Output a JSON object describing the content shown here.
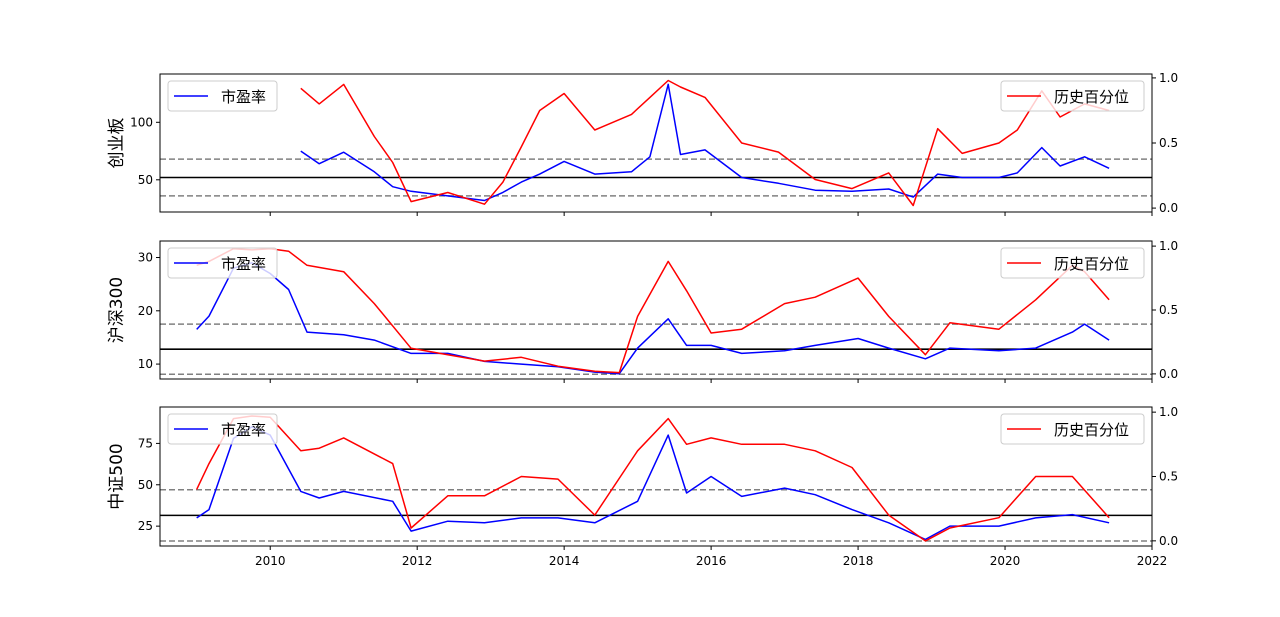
{
  "chart_data": [
    {
      "type": "line",
      "ylabel": "创业板",
      "left_ylim": [
        22,
        142
      ],
      "left_yticks": [
        50,
        100
      ],
      "right_ylim": [
        -0.03,
        1.03
      ],
      "right_yticks": [
        0.0,
        0.5,
        1.0
      ],
      "hlines": [
        {
          "y": 52,
          "style": "solid",
          "color": "#000000"
        },
        {
          "y": 68,
          "style": "dashed",
          "color": "#808080"
        },
        {
          "y": 36,
          "style": "dashed",
          "color": "#808080"
        }
      ],
      "legend_left": "top-left",
      "legend_right": "top-right",
      "series": [
        {
          "name": "市盈率",
          "axis": "left",
          "color": "#0000ff",
          "x": [
            "2010-06",
            "2010-09",
            "2011-01",
            "2011-06",
            "2011-09",
            "2011-12",
            "2012-06",
            "2012-12",
            "2013-03",
            "2013-06",
            "2013-09",
            "2014-01",
            "2014-06",
            "2014-12",
            "2015-03",
            "2015-06",
            "2015-08",
            "2015-12",
            "2016-06",
            "2016-12",
            "2017-06",
            "2017-12",
            "2018-06",
            "2018-10",
            "2019-02",
            "2019-06",
            "2019-12",
            "2020-03",
            "2020-07",
            "2020-10",
            "2021-02",
            "2021-06"
          ],
          "values": [
            75,
            64,
            74,
            57,
            44,
            40,
            36,
            32,
            39,
            48,
            55,
            66,
            55,
            57,
            70,
            133,
            72,
            76,
            52,
            47,
            41,
            40,
            42,
            35,
            55,
            52,
            52,
            56,
            78,
            62,
            70,
            60
          ]
        },
        {
          "name": "历史百分位",
          "axis": "right",
          "color": "#ff0000",
          "x": [
            "2010-06",
            "2010-09",
            "2011-01",
            "2011-06",
            "2011-09",
            "2011-12",
            "2012-06",
            "2012-12",
            "2013-03",
            "2013-06",
            "2013-09",
            "2014-01",
            "2014-06",
            "2014-12",
            "2015-03",
            "2015-06",
            "2015-08",
            "2015-12",
            "2016-06",
            "2016-12",
            "2017-06",
            "2017-12",
            "2018-06",
            "2018-10",
            "2019-02",
            "2019-06",
            "2019-12",
            "2020-03",
            "2020-07",
            "2020-10",
            "2021-02",
            "2021-06"
          ],
          "values": [
            0.92,
            0.8,
            0.95,
            0.55,
            0.35,
            0.05,
            0.12,
            0.03,
            0.2,
            0.47,
            0.75,
            0.88,
            0.6,
            0.72,
            0.85,
            0.98,
            0.93,
            0.85,
            0.5,
            0.43,
            0.22,
            0.15,
            0.27,
            0.02,
            0.61,
            0.42,
            0.5,
            0.6,
            0.9,
            0.7,
            0.8,
            0.75
          ]
        }
      ]
    },
    {
      "type": "line",
      "ylabel": "沪深300",
      "left_ylim": [
        7.2,
        33.1
      ],
      "left_yticks": [
        10,
        20,
        30
      ],
      "right_ylim": [
        -0.04,
        1.04
      ],
      "right_yticks": [
        0.0,
        0.5,
        1.0
      ],
      "hlines": [
        {
          "y": 12.8,
          "style": "solid",
          "color": "#000000"
        },
        {
          "y": 17.5,
          "style": "dashed",
          "color": "#808080"
        },
        {
          "y": 8.1,
          "style": "dashed",
          "color": "#808080"
        }
      ],
      "legend_left": "top-left",
      "legend_right": "top-right",
      "series": [
        {
          "name": "市盈率",
          "axis": "left",
          "color": "#0000ff",
          "x": [
            "2009-01",
            "2009-03",
            "2009-07",
            "2009-10",
            "2010-01",
            "2010-04",
            "2010-07",
            "2011-01",
            "2011-06",
            "2011-12",
            "2012-06",
            "2012-12",
            "2013-06",
            "2013-12",
            "2014-06",
            "2014-10",
            "2015-01",
            "2015-06",
            "2015-09",
            "2016-01",
            "2016-06",
            "2017-01",
            "2017-06",
            "2018-01",
            "2018-06",
            "2018-12",
            "2019-04",
            "2019-12",
            "2020-06",
            "2020-12",
            "2021-02",
            "2021-06"
          ],
          "values": [
            16.5,
            19,
            28,
            29,
            27,
            24,
            16,
            15.5,
            14.5,
            12,
            12,
            10.5,
            10,
            9.5,
            8.5,
            8.2,
            13,
            18.5,
            13.5,
            13.5,
            12,
            12.5,
            13.5,
            14.8,
            13,
            11,
            13,
            12.5,
            13,
            16,
            17.5,
            14.5
          ]
        },
        {
          "name": "历史百分位",
          "axis": "right",
          "color": "#ff0000",
          "x": [
            "2009-01",
            "2009-03",
            "2009-07",
            "2009-10",
            "2010-01",
            "2010-04",
            "2010-07",
            "2011-01",
            "2011-06",
            "2011-12",
            "2012-06",
            "2012-12",
            "2013-06",
            "2013-12",
            "2014-06",
            "2014-10",
            "2015-01",
            "2015-06",
            "2015-09",
            "2016-01",
            "2016-06",
            "2017-01",
            "2017-06",
            "2018-01",
            "2018-06",
            "2018-12",
            "2019-04",
            "2019-12",
            "2020-06",
            "2020-12",
            "2021-02",
            "2021-06"
          ],
          "values": [
            0.85,
            0.88,
            0.98,
            0.97,
            0.98,
            0.96,
            0.85,
            0.8,
            0.55,
            0.2,
            0.15,
            0.1,
            0.13,
            0.06,
            0.02,
            0.01,
            0.45,
            0.88,
            0.65,
            0.32,
            0.35,
            0.55,
            0.6,
            0.75,
            0.45,
            0.15,
            0.4,
            0.35,
            0.58,
            0.85,
            0.8,
            0.58
          ]
        }
      ]
    },
    {
      "type": "line",
      "ylabel": "中证500",
      "xlabel_ticks": [
        "2010",
        "2012",
        "2014",
        "2016",
        "2018",
        "2020",
        "2022"
      ],
      "left_ylim": [
        13,
        97
      ],
      "left_yticks": [
        25,
        50,
        75
      ],
      "right_ylim": [
        -0.04,
        1.04
      ],
      "right_yticks": [
        0.0,
        0.5,
        1.0
      ],
      "hlines": [
        {
          "y": 31.5,
          "style": "solid",
          "color": "#000000"
        },
        {
          "y": 47,
          "style": "dashed",
          "color": "#808080"
        },
        {
          "y": 16,
          "style": "dashed",
          "color": "#808080"
        }
      ],
      "legend_left": "top-left",
      "legend_right": "top-right",
      "series": [
        {
          "name": "市盈率",
          "axis": "left",
          "color": "#0000ff",
          "x": [
            "2009-01",
            "2009-03",
            "2009-07",
            "2009-10",
            "2010-01",
            "2010-06",
            "2010-09",
            "2011-01",
            "2011-09",
            "2011-12",
            "2012-06",
            "2012-12",
            "2013-06",
            "2013-12",
            "2014-06",
            "2015-01",
            "2015-06",
            "2015-09",
            "2016-01",
            "2016-06",
            "2017-01",
            "2017-06",
            "2017-12",
            "2018-06",
            "2018-12",
            "2019-04",
            "2019-12",
            "2020-06",
            "2020-12",
            "2021-06"
          ],
          "values": [
            30,
            35,
            78,
            85,
            80,
            46,
            42,
            46,
            40,
            22,
            28,
            27,
            30,
            30,
            27,
            40,
            80,
            45,
            55,
            43,
            48,
            44,
            35,
            27,
            17,
            25,
            25,
            30,
            32,
            27
          ]
        },
        {
          "name": "历史百分位",
          "axis": "right",
          "color": "#ff0000",
          "x": [
            "2009-01",
            "2009-03",
            "2009-07",
            "2009-10",
            "2010-01",
            "2010-06",
            "2010-09",
            "2011-01",
            "2011-09",
            "2011-12",
            "2012-06",
            "2012-12",
            "2013-06",
            "2013-12",
            "2014-06",
            "2015-01",
            "2015-06",
            "2015-09",
            "2016-01",
            "2016-06",
            "2017-01",
            "2017-06",
            "2017-12",
            "2018-06",
            "2018-12",
            "2019-04",
            "2019-12",
            "2020-06",
            "2020-12",
            "2021-06"
          ],
          "values": [
            0.4,
            0.6,
            0.95,
            0.97,
            0.96,
            0.7,
            0.72,
            0.8,
            0.6,
            0.1,
            0.35,
            0.35,
            0.5,
            0.48,
            0.2,
            0.7,
            0.95,
            0.75,
            0.8,
            0.75,
            0.75,
            0.7,
            0.57,
            0.2,
            0.0,
            0.1,
            0.18,
            0.5,
            0.5,
            0.18
          ]
        }
      ]
    }
  ],
  "x_axis": {
    "min": "2008-07",
    "max": "2022-01",
    "ticks": [
      "2010",
      "2012",
      "2014",
      "2016",
      "2018",
      "2020",
      "2022"
    ]
  }
}
